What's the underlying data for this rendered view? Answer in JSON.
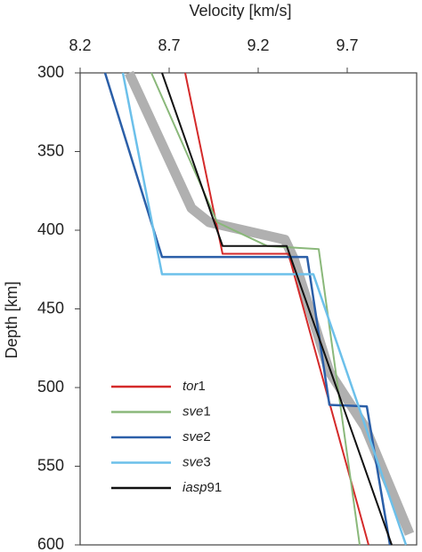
{
  "chart_data": {
    "type": "line",
    "xlabel": "Velocity [km/s]",
    "ylabel": "Depth [km]",
    "xlim": [
      8.2,
      10.09
    ],
    "xticks": [
      8.2,
      8.7,
      9.2,
      9.7
    ],
    "ylim": [
      300,
      600
    ],
    "yticks": [
      300,
      350,
      400,
      450,
      500,
      550,
      600
    ],
    "y_inverted": true,
    "x_axis_position": "top",
    "legend": "lower left",
    "series": [
      {
        "color": "#b0b0b0",
        "width": 11,
        "x": [
          8.475,
          8.825,
          8.925,
          9.35,
          9.4,
          9.6,
          9.8,
          10.05
        ],
        "values": [
          300,
          386,
          395,
          406,
          418,
          490,
          525,
          593
        ]
      },
      {
        "name": "tor1",
        "color": "#d42a2a",
        "width": 2,
        "x": [
          8.79,
          9.0,
          9.37,
          9.82
        ],
        "values": [
          300,
          415,
          415,
          600
        ]
      },
      {
        "name": "sve1",
        "color": "#8ab87a",
        "width": 2,
        "x": [
          8.6,
          8.97,
          9.25,
          9.54,
          9.77
        ],
        "values": [
          300,
          395,
          410,
          412,
          600
        ]
      },
      {
        "name": "sve2",
        "color": "#2b5fa8",
        "width": 2.5,
        "x": [
          8.34,
          8.66,
          9.475,
          9.6,
          9.81,
          9.94
        ],
        "values": [
          300,
          417,
          417,
          511,
          512,
          600
        ]
      },
      {
        "name": "sve3",
        "color": "#6cc0ea",
        "width": 2.5,
        "x": [
          8.44,
          8.66,
          9.51,
          10.03
        ],
        "values": [
          300,
          428,
          428,
          600
        ]
      },
      {
        "name": "iasp91",
        "color": "#111111",
        "width": 2,
        "x": [
          8.66,
          9.0,
          9.36,
          9.95
        ],
        "values": [
          300,
          410,
          410,
          600
        ]
      }
    ]
  }
}
